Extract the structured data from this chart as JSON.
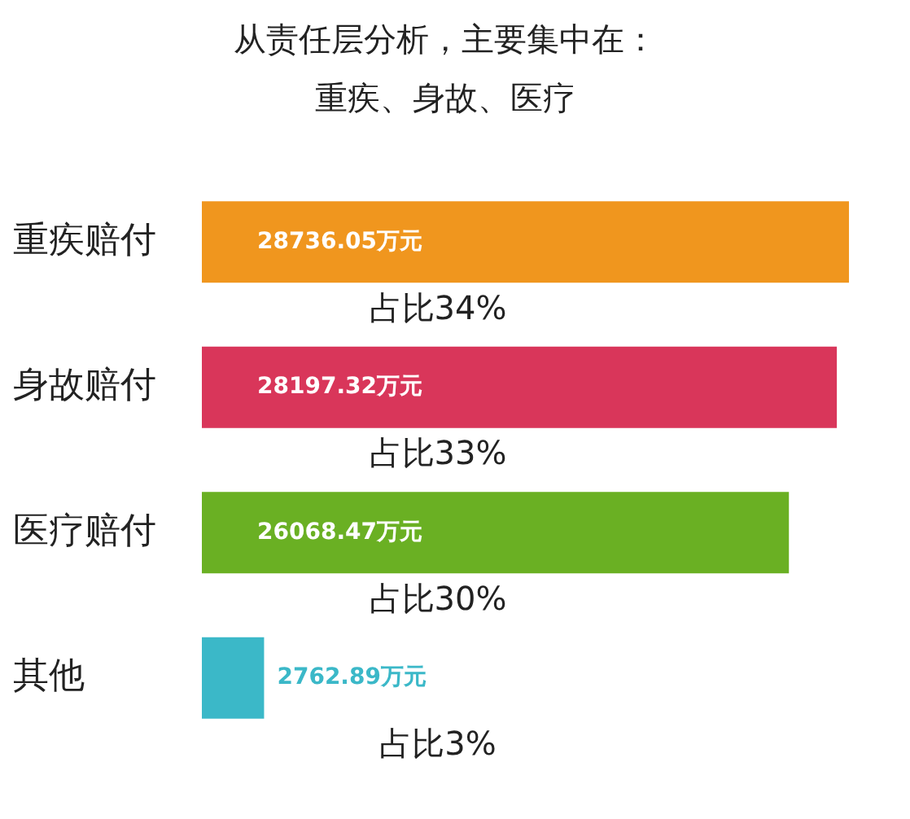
{
  "chart_data": {
    "type": "bar",
    "orientation": "horizontal",
    "title": "从责任层分析，主要集中在：",
    "subtitle": "重疾、身故、医疗",
    "categories": [
      "重疾赔付",
      "身故赔付",
      "医疗赔付",
      "其他"
    ],
    "values": [
      28736.05,
      28197.32,
      26068.47,
      2762.89
    ],
    "colors": [
      "#f0961e",
      "#d9365a",
      "#6ab023",
      "#3bb8c8"
    ],
    "value_labels": [
      "28736.05万元",
      "28197.32万元",
      "26068.47万元",
      "2762.89万元"
    ],
    "tick_labels": "y",
    "grid": false,
    "legend": false,
    "annotations": [
      "占比34%",
      "占比33%",
      "占比30%",
      "占比3%"
    ]
  }
}
